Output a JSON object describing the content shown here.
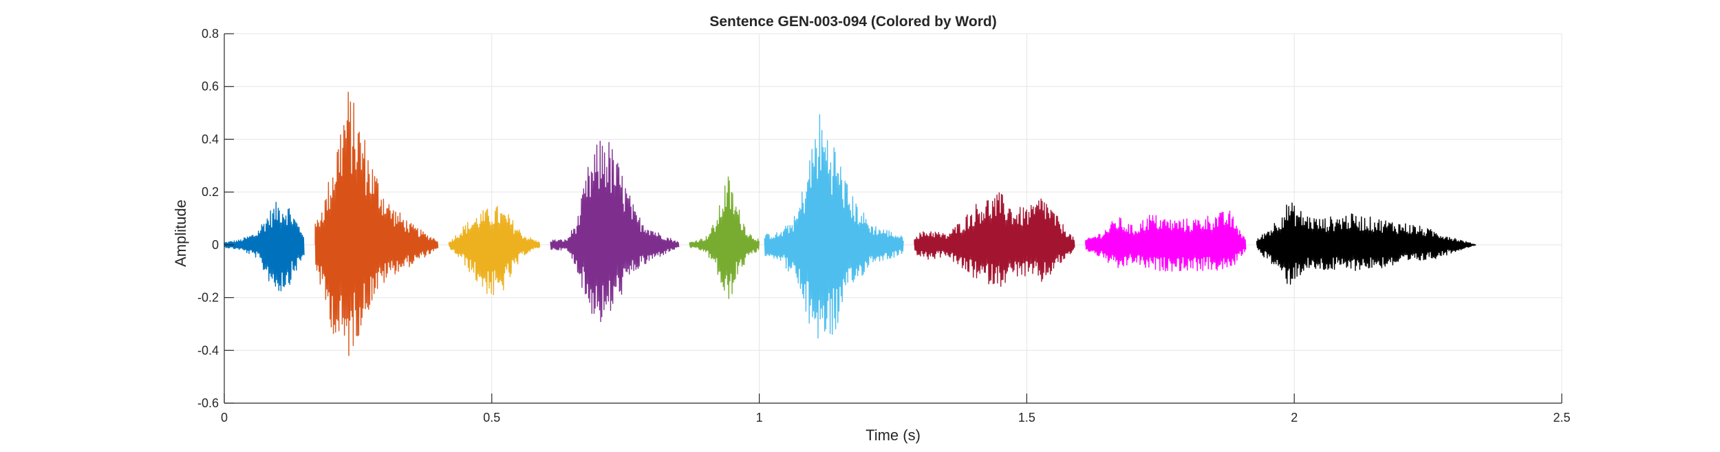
{
  "chart_data": {
    "type": "line",
    "title": "Sentence GEN-003-094 (Colored by Word)",
    "xlabel": "Time (s)",
    "ylabel": "Amplitude",
    "xlim": [
      0,
      2.5
    ],
    "ylim": [
      -0.6,
      0.8
    ],
    "xticks": [
      0,
      0.5,
      1,
      1.5,
      2,
      2.5
    ],
    "xtick_labels": [
      "0",
      "0.5",
      "1",
      "1.5",
      "2",
      "2.5"
    ],
    "yticks": [
      -0.6,
      -0.4,
      -0.2,
      0,
      0.2,
      0.4,
      0.6,
      0.8
    ],
    "ytick_labels": [
      "-0.6",
      "-0.4",
      "-0.2",
      "0",
      "0.2",
      "0.4",
      "0.6",
      "0.8"
    ],
    "grid": true,
    "series": [
      {
        "start": 0.0,
        "end": 0.15,
        "color": "#0072BD",
        "envelope": [
          [
            0.0,
            0.01,
            -0.01
          ],
          [
            0.03,
            0.02,
            -0.02
          ],
          [
            0.06,
            0.05,
            -0.05
          ],
          [
            0.08,
            0.12,
            -0.13
          ],
          [
            0.1,
            0.17,
            -0.19
          ],
          [
            0.12,
            0.16,
            -0.16
          ],
          [
            0.14,
            0.08,
            -0.08
          ],
          [
            0.15,
            0.05,
            -0.05
          ]
        ]
      },
      {
        "start": 0.17,
        "end": 0.4,
        "color": "#D95319",
        "envelope": [
          [
            0.17,
            0.08,
            -0.08
          ],
          [
            0.19,
            0.2,
            -0.25
          ],
          [
            0.21,
            0.4,
            -0.38
          ],
          [
            0.23,
            0.61,
            -0.45
          ],
          [
            0.25,
            0.5,
            -0.35
          ],
          [
            0.28,
            0.3,
            -0.2
          ],
          [
            0.31,
            0.16,
            -0.12
          ],
          [
            0.35,
            0.08,
            -0.08
          ],
          [
            0.38,
            0.04,
            -0.04
          ],
          [
            0.4,
            0.02,
            -0.02
          ]
        ]
      },
      {
        "start": 0.42,
        "end": 0.59,
        "color": "#EDB120",
        "envelope": [
          [
            0.42,
            0.01,
            -0.01
          ],
          [
            0.45,
            0.08,
            -0.08
          ],
          [
            0.48,
            0.13,
            -0.17
          ],
          [
            0.51,
            0.15,
            -0.22
          ],
          [
            0.53,
            0.12,
            -0.15
          ],
          [
            0.56,
            0.04,
            -0.04
          ],
          [
            0.59,
            0.01,
            -0.01
          ]
        ]
      },
      {
        "start": 0.61,
        "end": 0.85,
        "color": "#7E2F8E",
        "envelope": [
          [
            0.61,
            0.02,
            -0.02
          ],
          [
            0.64,
            0.02,
            -0.02
          ],
          [
            0.66,
            0.1,
            -0.1
          ],
          [
            0.68,
            0.3,
            -0.25
          ],
          [
            0.71,
            0.45,
            -0.32
          ],
          [
            0.74,
            0.3,
            -0.2
          ],
          [
            0.77,
            0.12,
            -0.1
          ],
          [
            0.81,
            0.05,
            -0.05
          ],
          [
            0.85,
            0.01,
            -0.01
          ]
        ]
      },
      {
        "start": 0.87,
        "end": 1.0,
        "color": "#77AC30",
        "envelope": [
          [
            0.87,
            0.01,
            -0.01
          ],
          [
            0.9,
            0.03,
            -0.03
          ],
          [
            0.92,
            0.1,
            -0.1
          ],
          [
            0.94,
            0.28,
            -0.25
          ],
          [
            0.96,
            0.15,
            -0.12
          ],
          [
            0.98,
            0.05,
            -0.05
          ],
          [
            1.0,
            0.02,
            -0.02
          ]
        ]
      },
      {
        "start": 1.01,
        "end": 1.27,
        "color": "#4DBEEE",
        "envelope": [
          [
            1.01,
            0.04,
            -0.04
          ],
          [
            1.04,
            0.05,
            -0.06
          ],
          [
            1.07,
            0.12,
            -0.15
          ],
          [
            1.09,
            0.3,
            -0.3
          ],
          [
            1.11,
            0.52,
            -0.37
          ],
          [
            1.14,
            0.4,
            -0.35
          ],
          [
            1.17,
            0.2,
            -0.18
          ],
          [
            1.21,
            0.08,
            -0.07
          ],
          [
            1.25,
            0.05,
            -0.05
          ],
          [
            1.27,
            0.03,
            -0.03
          ]
        ]
      },
      {
        "start": 1.29,
        "end": 1.59,
        "color": "#A2142F",
        "envelope": [
          [
            1.29,
            0.04,
            -0.04
          ],
          [
            1.32,
            0.06,
            -0.06
          ],
          [
            1.35,
            0.04,
            -0.04
          ],
          [
            1.38,
            0.1,
            -0.1
          ],
          [
            1.41,
            0.17,
            -0.14
          ],
          [
            1.45,
            0.2,
            -0.16
          ],
          [
            1.48,
            0.14,
            -0.12
          ],
          [
            1.51,
            0.15,
            -0.13
          ],
          [
            1.53,
            0.2,
            -0.15
          ],
          [
            1.56,
            0.1,
            -0.08
          ],
          [
            1.59,
            0.02,
            -0.02
          ]
        ]
      },
      {
        "start": 1.61,
        "end": 1.91,
        "color": "#FF00FF",
        "envelope": [
          [
            1.61,
            0.02,
            -0.02
          ],
          [
            1.64,
            0.05,
            -0.05
          ],
          [
            1.67,
            0.11,
            -0.1
          ],
          [
            1.7,
            0.07,
            -0.07
          ],
          [
            1.73,
            0.12,
            -0.1
          ],
          [
            1.77,
            0.1,
            -0.1
          ],
          [
            1.81,
            0.1,
            -0.1
          ],
          [
            1.85,
            0.12,
            -0.1
          ],
          [
            1.88,
            0.13,
            -0.1
          ],
          [
            1.91,
            0.02,
            -0.02
          ]
        ]
      },
      {
        "start": 1.93,
        "end": 2.34,
        "color": "#000000",
        "envelope": [
          [
            1.93,
            0.02,
            -0.02
          ],
          [
            1.96,
            0.08,
            -0.08
          ],
          [
            1.99,
            0.17,
            -0.16
          ],
          [
            2.02,
            0.12,
            -0.1
          ],
          [
            2.05,
            0.1,
            -0.1
          ],
          [
            2.1,
            0.12,
            -0.1
          ],
          [
            2.16,
            0.1,
            -0.09
          ],
          [
            2.22,
            0.08,
            -0.07
          ],
          [
            2.27,
            0.05,
            -0.05
          ],
          [
            2.31,
            0.02,
            -0.02
          ],
          [
            2.34,
            0.0,
            -0.0
          ]
        ]
      }
    ]
  }
}
